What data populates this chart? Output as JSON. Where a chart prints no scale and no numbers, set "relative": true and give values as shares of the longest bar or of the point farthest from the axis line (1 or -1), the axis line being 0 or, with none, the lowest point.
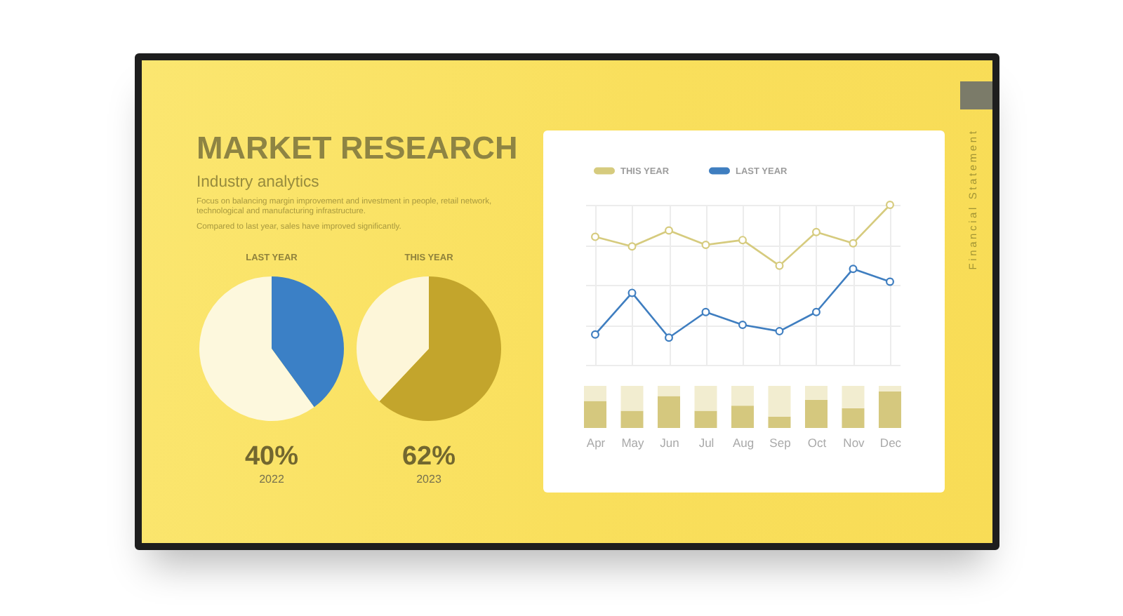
{
  "chart_data": [
    {
      "type": "other",
      "title": "MARKET RESEARCH",
      "subtitle": "Industry analytics",
      "annotations": [
        "Focus on balancing margin improvement and investment in people, retail network, technological and manufacturing infrastructure.",
        "Compared to last year, sales have improved significantly."
      ]
    },
    {
      "type": "pie",
      "title": "LAST YEAR",
      "categories": [
        null,
        null
      ],
      "values": [
        40,
        60
      ],
      "colors": [
        "#3b80c6",
        "#fdf8dd"
      ],
      "annotations": [
        "40%",
        "2022"
      ]
    },
    {
      "type": "pie",
      "title": "THIS YEAR",
      "categories": [
        null,
        null
      ],
      "values": [
        62,
        38
      ],
      "colors": [
        "#c3a52c",
        "#fdf6d9"
      ],
      "annotations": [
        "62%",
        "2023"
      ]
    },
    {
      "type": "line",
      "relative": true,
      "categories": [
        null,
        null,
        null,
        null,
        null,
        null,
        null,
        null,
        null
      ],
      "series": [
        {
          "name": "THIS YEAR",
          "color": "#d6cb7e",
          "values": [
            0.8,
            0.74,
            0.84,
            0.75,
            0.78,
            0.62,
            0.83,
            0.76,
            1
          ]
        },
        {
          "name": "LAST YEAR",
          "color": "#3f7ec0",
          "values": [
            0.19,
            0.45,
            0.17,
            0.33,
            0.25,
            0.21,
            0.33,
            0.6,
            0.52
          ]
        }
      ],
      "grid": true,
      "legend": "top left",
      "marker": "circle",
      "line_style": "solid"
    },
    {
      "type": "bar",
      "relative": true,
      "stacked": true,
      "categories": [
        "Apr",
        "May",
        "Jun",
        "Jul",
        "Aug",
        "Sep",
        "Oct",
        "Nov",
        "Dec"
      ],
      "series": [
        {
          "color": "#d5c87e",
          "values": [
            0.64,
            0.41,
            0.76,
            0.41,
            0.53,
            0.27,
            0.67,
            0.47,
            0.87
          ]
        },
        {
          "color": "#f2edd0",
          "values": [
            0.36,
            0.59,
            0.24,
            0.59,
            0.47,
            0.73,
            0.33,
            0.53,
            0.13
          ]
        }
      ]
    },
    {
      "type": "other",
      "title": "Financial Statement"
    }
  ]
}
